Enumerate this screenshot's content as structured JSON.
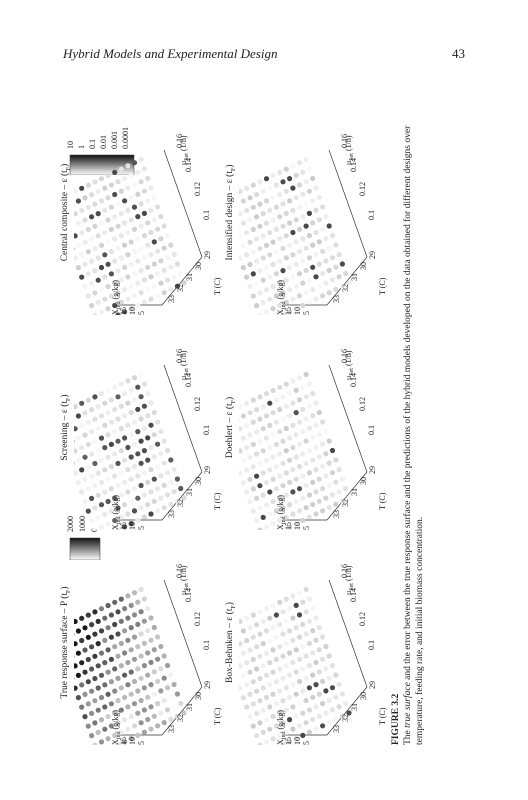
{
  "header": {
    "title": "Hybrid Models and Experimental Design",
    "page_number": "43"
  },
  "axes": {
    "x_label": "X",
    "x_sub": "ind",
    "x_unit": "(g/kg)",
    "x_ticks": [
      "15",
      "10",
      "5"
    ],
    "t_label": "T (C)",
    "t_ticks": [
      "33",
      "32",
      "31",
      "30",
      "29"
    ],
    "mu_label": "μ",
    "mu_sub": "Set",
    "mu_unit": "(1/h)",
    "mu_ticks": [
      "0.1",
      "0.12",
      "0.14",
      "0.16"
    ]
  },
  "panels": [
    {
      "title": "True response surface – P (t",
      "title_sub": "F",
      "title_end": ")",
      "seed": 1,
      "dark": 0.85
    },
    {
      "title": "Screening – ε (t",
      "title_sub": "F",
      "title_end": ")",
      "seed": 2,
      "dark": 0.6
    },
    {
      "title": "Central composite – ε (t",
      "title_sub": "F",
      "title_end": ")",
      "seed": 3,
      "dark": 0.3
    },
    {
      "title": "Box-Behnken – ε (t",
      "title_sub": "F",
      "title_end": ")",
      "seed": 4,
      "dark": 0.2
    },
    {
      "title": "Doehlert – ε (t",
      "title_sub": "F",
      "title_end": ")",
      "seed": 5,
      "dark": 0.25
    },
    {
      "title": "Intensified design – ε (t",
      "title_sub": "F",
      "title_end": ")",
      "seed": 6,
      "dark": 0.18
    }
  ],
  "colorbar_true": {
    "labels": [
      "2000",
      "1000",
      "0"
    ]
  },
  "colorbar_error": {
    "labels": [
      "10",
      "1",
      "0.1",
      "0.01",
      "0.001",
      "0.0001"
    ]
  },
  "caption": {
    "label": "FIGURE 3.2",
    "text_pre": "The ",
    "text_em": "true surface",
    "text_post": " and the error between the true response surface and the predictions of the hybrid models developed on the data obtained for different designs over temperature, feeding rate, and initial biomass concentration."
  }
}
